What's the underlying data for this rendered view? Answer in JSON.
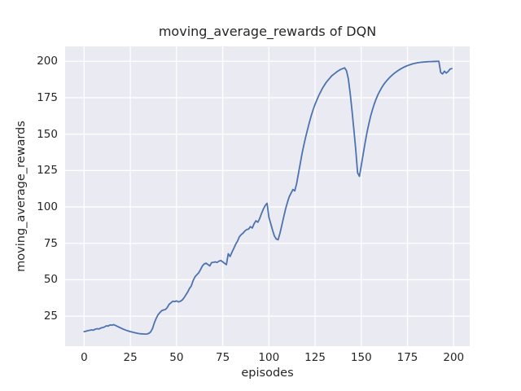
{
  "chart_data": {
    "type": "line",
    "title": "moving_average_rewards of DQN",
    "xlabel": "episodes",
    "ylabel": "moving_average_rewards",
    "x_ticks": [
      0,
      25,
      50,
      75,
      100,
      125,
      150,
      175,
      200
    ],
    "y_ticks": [
      25,
      50,
      75,
      100,
      125,
      150,
      175,
      200
    ],
    "xlim": [
      -10.3,
      208.7
    ],
    "ylim": [
      4.4,
      210.2
    ],
    "grid": true,
    "legend": false,
    "style": {
      "line_color": "#4C72B0",
      "line_width": 1.8,
      "plot_bg": "#EAEAF2",
      "grid_color": "#FFFFFF",
      "text_color": "#262626",
      "fig_bg": "#FFFFFF"
    },
    "series": [
      {
        "name": "moving_average_rewards",
        "x_start": 0,
        "x_step": 1,
        "values": [
          14.4,
          14.7,
          15.1,
          15.3,
          15.6,
          15.4,
          16.1,
          16.4,
          16.2,
          16.9,
          17.2,
          17.6,
          18.4,
          18.2,
          19.0,
          18.8,
          19.2,
          18.6,
          18.0,
          17.4,
          16.8,
          16.2,
          15.7,
          15.2,
          14.8,
          14.4,
          14.1,
          13.8,
          13.5,
          13.2,
          13.0,
          12.9,
          12.8,
          12.7,
          12.8,
          13.2,
          14.2,
          16.5,
          20.5,
          23.5,
          26.0,
          27.5,
          28.8,
          29.3,
          29.6,
          31.0,
          33.2,
          34.2,
          35.3,
          35.0,
          35.5,
          34.8,
          35.2,
          36.0,
          37.5,
          39.5,
          41.5,
          44.0,
          45.8,
          49.5,
          52.0,
          53.5,
          54.8,
          57.0,
          59.5,
          60.9,
          61.4,
          60.5,
          59.5,
          61.8,
          62.0,
          62.3,
          61.9,
          62.8,
          63.2,
          62.3,
          61.3,
          60.4,
          67.9,
          66.0,
          68.9,
          71.5,
          74.4,
          76.5,
          79.5,
          81.0,
          82.0,
          83.5,
          84.5,
          84.8,
          86.5,
          85.5,
          88.5,
          90.5,
          89.5,
          92.0,
          95.5,
          98.5,
          101.0,
          102.5,
          93.0,
          88.5,
          84.0,
          80.0,
          78.0,
          77.5,
          82.0,
          87.5,
          93.0,
          98.5,
          103.0,
          107.0,
          109.5,
          112.0,
          111.0,
          116.0,
          123.0,
          130.0,
          137.0,
          143.0,
          148.5,
          153.5,
          158.5,
          163.0,
          167.0,
          170.5,
          173.5,
          176.5,
          179.0,
          181.5,
          183.5,
          185.5,
          187.0,
          188.5,
          190.0,
          191.0,
          192.0,
          193.0,
          193.8,
          194.5,
          195.0,
          195.5,
          193.5,
          188.0,
          178.0,
          166.0,
          153.0,
          139.5,
          123.5,
          121.0,
          128.5,
          136.0,
          143.5,
          150.5,
          156.5,
          162.0,
          166.5,
          170.5,
          174.0,
          177.0,
          179.5,
          181.8,
          183.8,
          185.5,
          187.0,
          188.4,
          189.7,
          190.8,
          191.9,
          192.8,
          193.7,
          194.5,
          195.2,
          195.9,
          196.5,
          197.0,
          197.5,
          197.9,
          198.3,
          198.6,
          198.9,
          199.1,
          199.3,
          199.4,
          199.5,
          199.6,
          199.7,
          199.8,
          199.8,
          199.9,
          199.9,
          200.0,
          200.0,
          192.3,
          191.3,
          193.2,
          191.9,
          193.0,
          194.6,
          195.0
        ]
      }
    ]
  }
}
